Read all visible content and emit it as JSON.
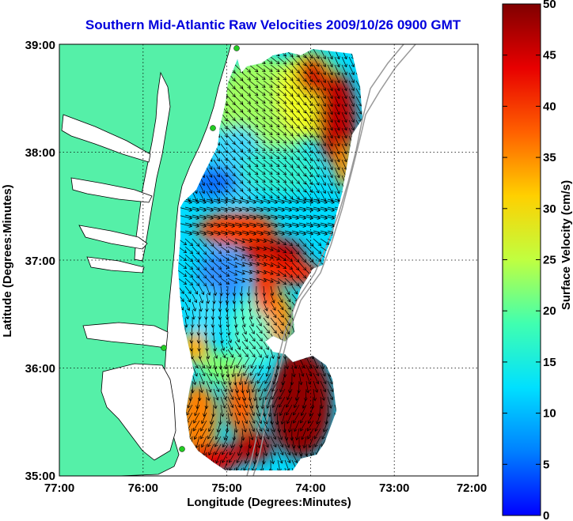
{
  "title": "Southern Mid-Atlantic Raw Velocities 2009/10/26 0900 GMT",
  "x_axis": {
    "label": "Longitude (Degrees:Minutes)",
    "ticks": [
      "77:00",
      "76:00",
      "75:00",
      "74:00",
      "73:00",
      "72:00"
    ]
  },
  "y_axis": {
    "label": "Latitude (Degrees:Minutes)",
    "ticks": [
      "39:00",
      "38:00",
      "37:00",
      "36:00",
      "35:00"
    ]
  },
  "colorbar": {
    "label": "Surface Velocity (cm/s)",
    "ticks": [
      "50",
      "45",
      "40",
      "35",
      "30",
      "25",
      "20",
      "15",
      "10",
      "5",
      "0"
    ],
    "range": [
      0,
      50
    ],
    "colormap": "jet"
  },
  "colors": {
    "title": "#0000dd",
    "land": "#55f0a8",
    "water": "#ffffff",
    "arrows": "#000000",
    "station_markers": "#22cc22",
    "bathymetry_contour": "#999999"
  }
}
